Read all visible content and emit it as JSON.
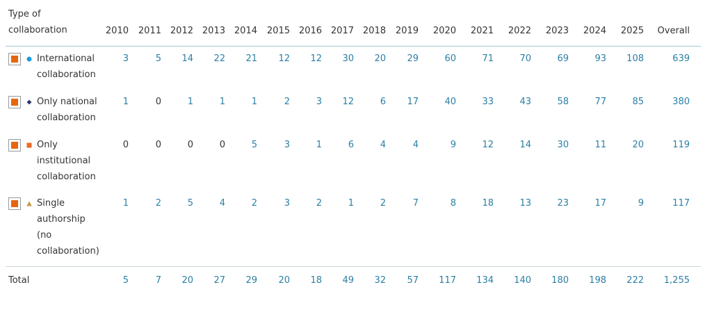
{
  "table": {
    "header": [
      "Type of collaboration",
      "2010",
      "2011",
      "2012",
      "2013",
      "2014",
      "2015",
      "2016",
      "2017",
      "2018",
      "2019",
      "2020",
      "2021",
      "2022",
      "2023",
      "2024",
      "2025",
      "Overall"
    ],
    "rows": [
      {
        "label": "International collaboration",
        "values": [
          3,
          5,
          14,
          22,
          21,
          12,
          12,
          30,
          20,
          29,
          60,
          71,
          70,
          69,
          93,
          108,
          639
        ]
      },
      {
        "label": "Only national collaboration",
        "values": [
          1,
          0,
          1,
          1,
          1,
          2,
          3,
          12,
          6,
          17,
          40,
          33,
          43,
          58,
          77,
          85,
          380
        ]
      },
      {
        "label": "Only institutional collaboration",
        "values": [
          0,
          0,
          0,
          0,
          5,
          3,
          1,
          6,
          4,
          4,
          9,
          12,
          14,
          30,
          11,
          20,
          119
        ]
      },
      {
        "label": "Single authorship (no collaboration)",
        "values": [
          1,
          2,
          5,
          4,
          2,
          3,
          2,
          1,
          2,
          7,
          8,
          18,
          13,
          23,
          17,
          9,
          117
        ]
      }
    ],
    "total": {
      "label": "Total",
      "values": [
        5,
        7,
        20,
        27,
        29,
        20,
        18,
        49,
        32,
        57,
        117,
        134,
        140,
        180,
        198,
        222,
        "1,255"
      ]
    }
  }
}
